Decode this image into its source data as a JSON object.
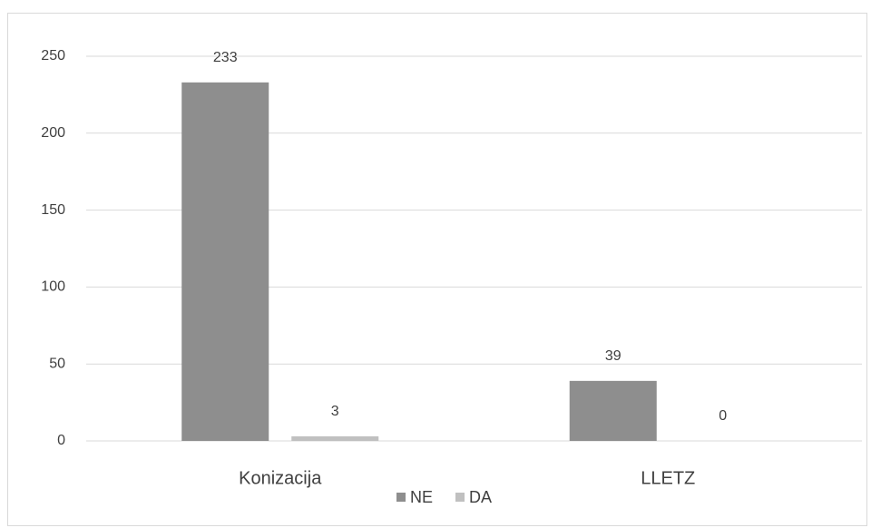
{
  "chart_data": {
    "type": "bar",
    "categories": [
      "Konizacija",
      "LLETZ"
    ],
    "series": [
      {
        "name": "NE",
        "color": "#8e8e8e",
        "values": [
          233,
          39
        ]
      },
      {
        "name": "DA",
        "color": "#c0c0c0",
        "values": [
          3,
          0
        ]
      }
    ],
    "ylim": [
      0,
      250
    ],
    "yticks": [
      0,
      50,
      100,
      150,
      200,
      250
    ],
    "grid": true,
    "legend": "bottom"
  }
}
